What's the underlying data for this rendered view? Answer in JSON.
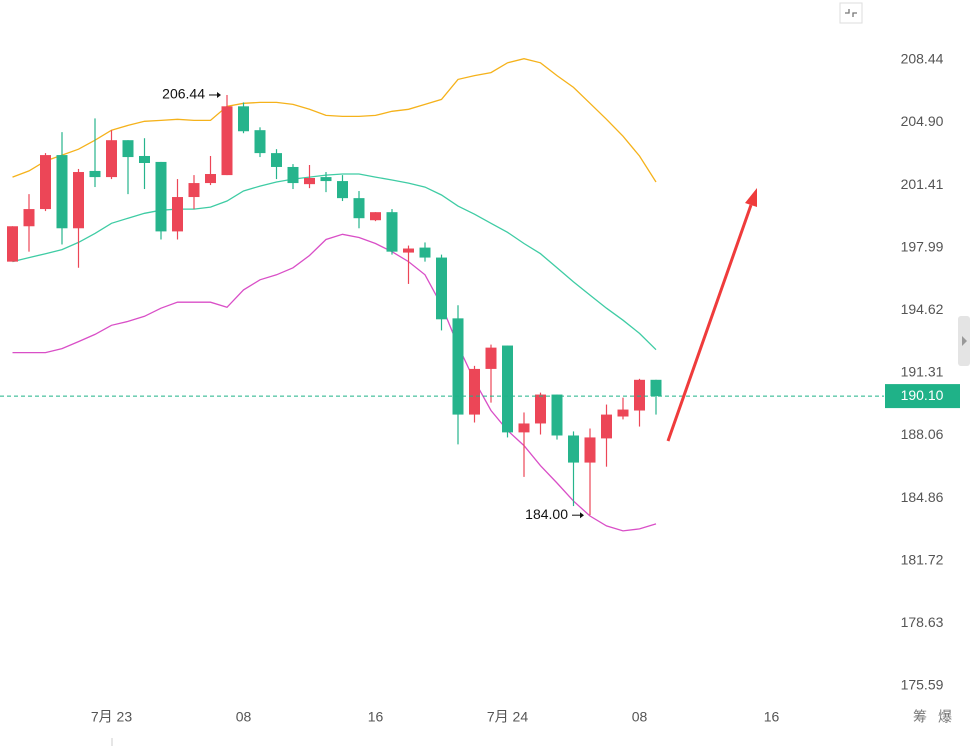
{
  "chart_data": {
    "type": "candlestick",
    "log_scale": true,
    "grid": false,
    "up_color": "#ec4657",
    "down_color": "#26b48c",
    "categories": [
      null,
      null,
      null,
      null,
      null,
      null,
      "7月 23",
      null,
      null,
      null,
      null,
      null,
      null,
      null,
      "08",
      null,
      null,
      null,
      null,
      null,
      null,
      null,
      "16",
      null,
      null,
      null,
      null,
      null,
      null,
      null,
      "7月 24",
      null,
      null,
      null,
      null,
      null,
      null,
      null,
      "08",
      null,
      null,
      null,
      null,
      null,
      null,
      null,
      "16"
    ],
    "open": [
      197.23,
      199.15,
      200.09,
      203.07,
      199.04,
      202.19,
      201.85,
      203.9,
      203.02,
      202.69,
      198.87,
      200.75,
      201.52,
      201.96,
      205.8,
      204.46,
      203.18,
      202.41,
      201.46,
      201.85,
      201.63,
      200.69,
      199.48,
      199.92,
      197.72,
      197.99,
      197.45,
      194.19,
      189.14,
      191.52,
      192.75,
      188.22,
      188.68,
      190.18,
      188.06,
      186.67,
      187.91,
      189.04,
      189.35,
      190.95,
      null,
      null,
      null,
      null,
      null,
      null,
      null
    ],
    "high": [
      199.15,
      200.91,
      203.18,
      204.35,
      202.3,
      205.12,
      204.46,
      203.9,
      204.01,
      202.69,
      201.74,
      201.96,
      203.02,
      206.44,
      206.02,
      204.62,
      203.4,
      202.57,
      202.52,
      202.13,
      201.96,
      201.08,
      199.92,
      200.09,
      198.1,
      198.27,
      197.61,
      194.89,
      191.68,
      192.8,
      192.75,
      189.25,
      190.28,
      190.18,
      188.27,
      188.42,
      189.66,
      190.02,
      191.0,
      190.95,
      null,
      null,
      null,
      null,
      null,
      null,
      null
    ],
    "low": [
      197.23,
      197.77,
      199.98,
      198.16,
      196.9,
      201.3,
      201.74,
      200.91,
      201.19,
      198.43,
      198.43,
      200.09,
      201.41,
      201.96,
      204.29,
      202.96,
      201.74,
      201.19,
      201.24,
      201.02,
      200.53,
      199.04,
      199.43,
      197.61,
      196.03,
      197.23,
      193.55,
      187.6,
      188.73,
      189.76,
      187.96,
      185.94,
      188.11,
      187.85,
      184.46,
      184.0,
      186.46,
      188.89,
      188.52,
      189.14,
      null,
      null,
      null,
      null,
      null,
      null,
      null
    ],
    "close": [
      199.15,
      200.09,
      203.07,
      199.04,
      202.13,
      201.85,
      203.9,
      202.96,
      202.63,
      198.87,
      200.75,
      201.52,
      202.02,
      205.8,
      204.4,
      203.18,
      202.41,
      201.52,
      201.8,
      201.63,
      200.69,
      199.59,
      199.92,
      197.77,
      197.94,
      197.45,
      194.14,
      189.14,
      191.52,
      192.64,
      188.22,
      188.68,
      190.18,
      188.06,
      186.67,
      187.96,
      189.14,
      189.4,
      190.95,
      190.1,
      null,
      null,
      null,
      null,
      null,
      null,
      null
    ],
    "bands": [
      {
        "color": "#f5b21b",
        "values": [
          201.85,
          202.19,
          202.74,
          203.07,
          203.4,
          203.9,
          204.46,
          204.73,
          204.96,
          205.01,
          205.07,
          205.01,
          205.01,
          205.8,
          205.97,
          206.02,
          206.02,
          205.91,
          205.63,
          205.29,
          205.23,
          205.23,
          205.29,
          205.52,
          205.63,
          205.91,
          206.19,
          207.32,
          207.54,
          207.71,
          208.27,
          208.5,
          208.27,
          207.54,
          206.87,
          205.97,
          205.07,
          204.12,
          203.02,
          201.58,
          null,
          null,
          null,
          null,
          null,
          null,
          null
        ]
      },
      {
        "color": "#3fcca4",
        "values": [
          197.23,
          197.45,
          197.66,
          197.88,
          198.27,
          198.76,
          199.31,
          199.59,
          199.86,
          200.03,
          200.09,
          200.09,
          200.2,
          200.53,
          201.08,
          201.35,
          201.58,
          201.74,
          201.85,
          201.96,
          202.02,
          202.02,
          201.85,
          201.69,
          201.52,
          201.3,
          200.86,
          200.25,
          199.81,
          199.31,
          198.82,
          198.21,
          197.66,
          196.9,
          196.14,
          195.43,
          194.73,
          194.09,
          193.39,
          192.53,
          null,
          null,
          null,
          null,
          null,
          null,
          null
        ]
      },
      {
        "color": "#d94fc7",
        "values": [
          192.38,
          192.38,
          192.38,
          192.59,
          192.96,
          193.34,
          193.82,
          194.03,
          194.3,
          194.73,
          195.05,
          195.05,
          195.05,
          194.78,
          195.71,
          196.25,
          196.52,
          196.9,
          197.56,
          198.43,
          198.71,
          198.54,
          198.21,
          197.77,
          197.23,
          196.52,
          194.89,
          192.75,
          190.9,
          189.35,
          188.32,
          187.54,
          186.51,
          185.63,
          184.71,
          183.96,
          183.46,
          183.21,
          183.31,
          183.56,
          null,
          null,
          null,
          null,
          null,
          null,
          null
        ]
      }
    ],
    "ylim": [
      174.68,
      211.88
    ],
    "yticks": [
      208.44,
      {
        "value": 204.9,
        "label": "204.90"
      },
      201.41,
      197.99,
      194.62,
      191.31,
      188.06,
      184.86,
      181.72,
      178.63,
      175.59
    ],
    "last_price": {
      "value": 190.1,
      "label": "190.10",
      "color": "#1fb288"
    },
    "annotations": [
      {
        "value": 206.44,
        "label": "206.44"
      },
      {
        "value": 184,
        "label": "184.00"
      }
    ],
    "toolbar_labels": [
      "筹",
      "爆"
    ]
  }
}
